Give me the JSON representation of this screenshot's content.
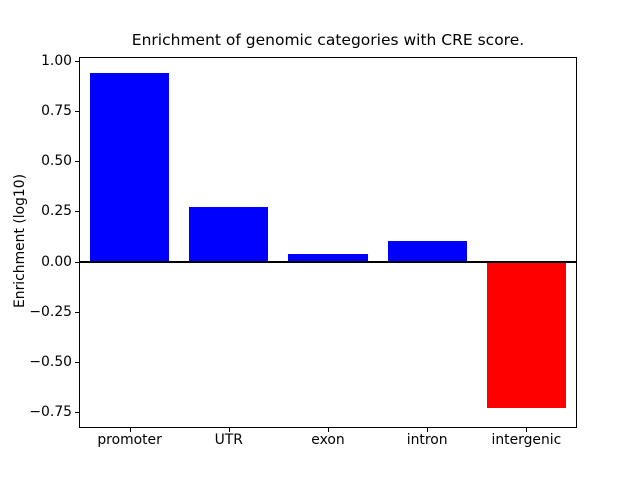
{
  "figure": {
    "title": "Enrichment of genomic categories with CRE score.",
    "ylabel": "Enrichment (log10)"
  },
  "chart_data": {
    "type": "bar",
    "title": "Enrichment of genomic categories with CRE score.",
    "xlabel": "",
    "ylabel": "Enrichment (log10)",
    "categories": [
      "promoter",
      "UTR",
      "exon",
      "intron",
      "intergenic"
    ],
    "values": [
      0.94,
      0.27,
      0.04,
      0.1,
      -0.73
    ],
    "positive_color": "#0000ff",
    "negative_color": "#ff0000",
    "axis_color": "#000000",
    "background_color": "#ffffff",
    "ylim": [
      -0.825,
      1.015
    ],
    "yticks": [
      1.0,
      0.75,
      0.5,
      0.25,
      0.0,
      -0.25,
      -0.5,
      -0.75
    ],
    "ytick_labels": [
      "1.00",
      "0.75",
      "0.50",
      "0.25",
      "0.00",
      "−0.25",
      "−0.50",
      "−0.75"
    ],
    "bar_width_fraction": 0.8,
    "grid": false,
    "zero_line": true,
    "legend": "none"
  }
}
